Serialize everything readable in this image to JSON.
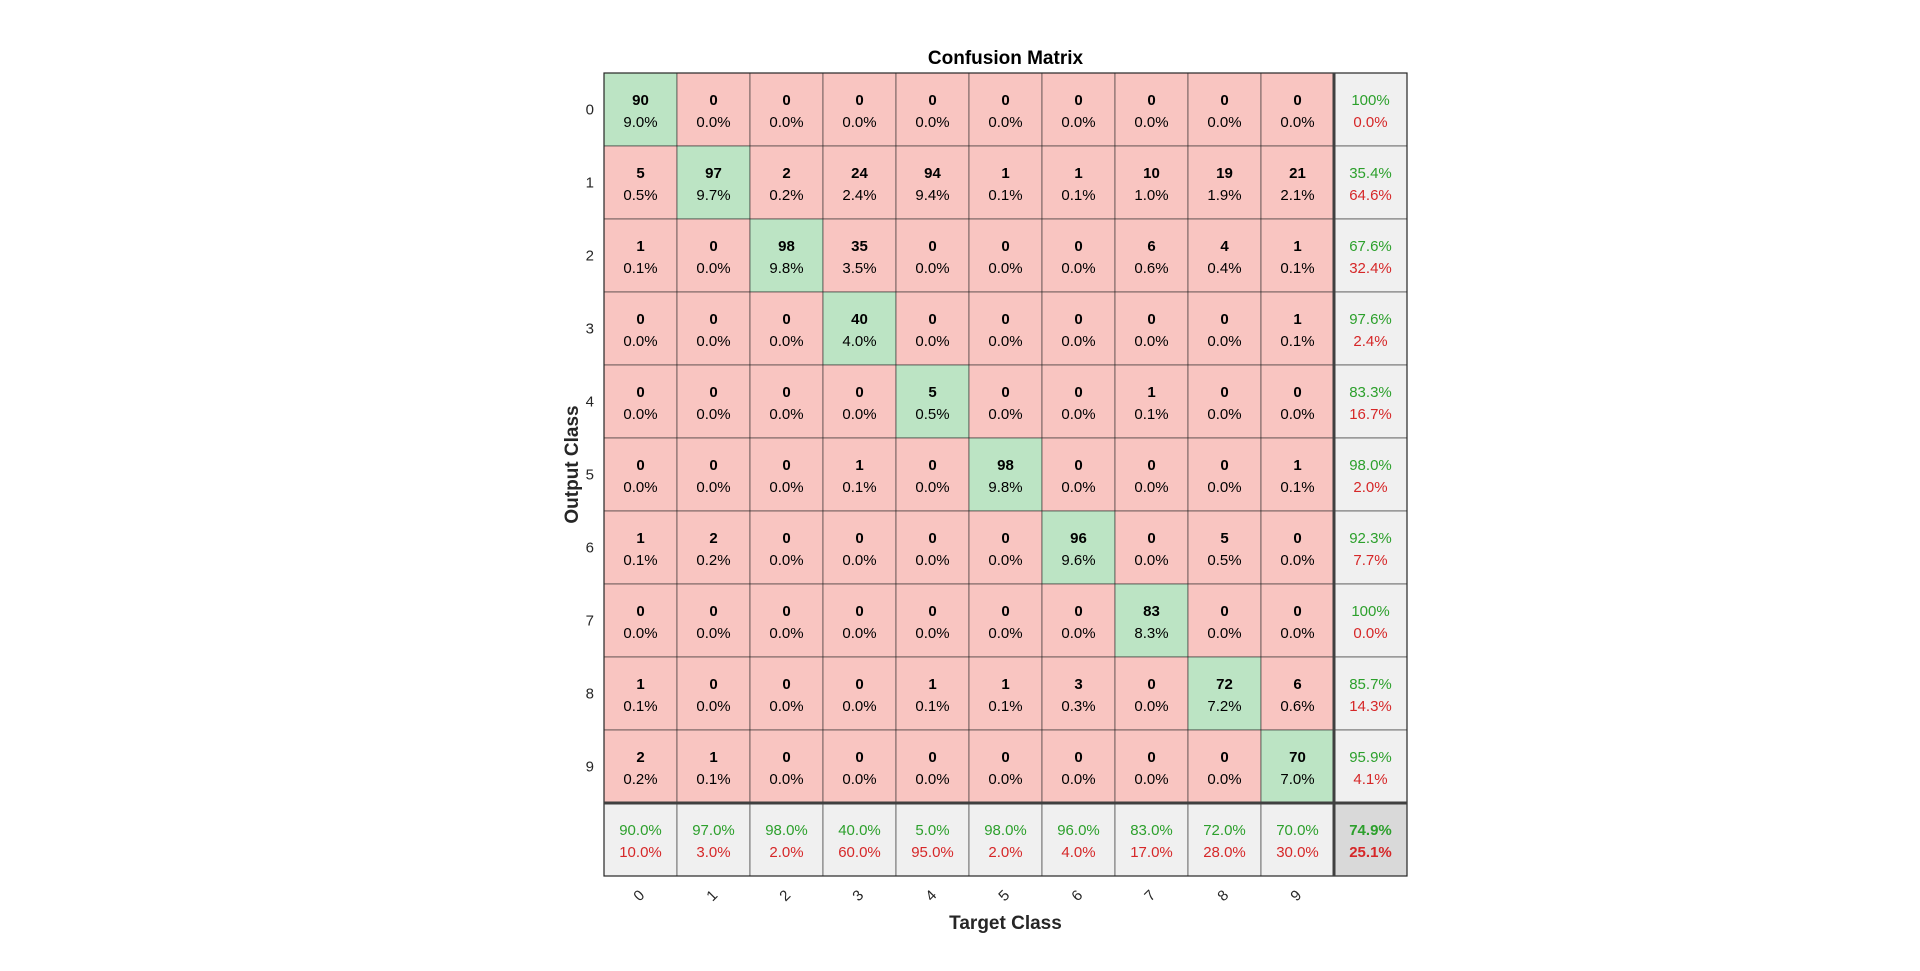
{
  "chart_data": {
    "type": "heatmap",
    "title": "Confusion Matrix",
    "xlabel": "Target Class",
    "ylabel": "Output Class",
    "classes": [
      "0",
      "1",
      "2",
      "3",
      "4",
      "5",
      "6",
      "7",
      "8",
      "9"
    ],
    "counts": [
      [
        90,
        0,
        0,
        0,
        0,
        0,
        0,
        0,
        0,
        0
      ],
      [
        5,
        97,
        2,
        24,
        94,
        1,
        1,
        10,
        19,
        21
      ],
      [
        1,
        0,
        98,
        35,
        0,
        0,
        0,
        6,
        4,
        1
      ],
      [
        0,
        0,
        0,
        40,
        0,
        0,
        0,
        0,
        0,
        1
      ],
      [
        0,
        0,
        0,
        0,
        5,
        0,
        0,
        1,
        0,
        0
      ],
      [
        0,
        0,
        0,
        1,
        0,
        98,
        0,
        0,
        0,
        1
      ],
      [
        1,
        2,
        0,
        0,
        0,
        0,
        96,
        0,
        5,
        0
      ],
      [
        0,
        0,
        0,
        0,
        0,
        0,
        0,
        83,
        0,
        0
      ],
      [
        1,
        0,
        0,
        0,
        1,
        1,
        3,
        0,
        72,
        6
      ],
      [
        2,
        1,
        0,
        0,
        0,
        0,
        0,
        0,
        0,
        70
      ]
    ],
    "percentages": [
      [
        "9.0%",
        "0.0%",
        "0.0%",
        "0.0%",
        "0.0%",
        "0.0%",
        "0.0%",
        "0.0%",
        "0.0%",
        "0.0%"
      ],
      [
        "0.5%",
        "9.7%",
        "0.2%",
        "2.4%",
        "9.4%",
        "0.1%",
        "0.1%",
        "1.0%",
        "1.9%",
        "2.1%"
      ],
      [
        "0.1%",
        "0.0%",
        "9.8%",
        "3.5%",
        "0.0%",
        "0.0%",
        "0.0%",
        "0.6%",
        "0.4%",
        "0.1%"
      ],
      [
        "0.0%",
        "0.0%",
        "0.0%",
        "4.0%",
        "0.0%",
        "0.0%",
        "0.0%",
        "0.0%",
        "0.0%",
        "0.1%"
      ],
      [
        "0.0%",
        "0.0%",
        "0.0%",
        "0.0%",
        "0.5%",
        "0.0%",
        "0.0%",
        "0.1%",
        "0.0%",
        "0.0%"
      ],
      [
        "0.0%",
        "0.0%",
        "0.0%",
        "0.1%",
        "0.0%",
        "9.8%",
        "0.0%",
        "0.0%",
        "0.0%",
        "0.1%"
      ],
      [
        "0.1%",
        "0.2%",
        "0.0%",
        "0.0%",
        "0.0%",
        "0.0%",
        "9.6%",
        "0.0%",
        "0.5%",
        "0.0%"
      ],
      [
        "0.0%",
        "0.0%",
        "0.0%",
        "0.0%",
        "0.0%",
        "0.0%",
        "0.0%",
        "8.3%",
        "0.0%",
        "0.0%"
      ],
      [
        "0.1%",
        "0.0%",
        "0.0%",
        "0.0%",
        "0.1%",
        "0.1%",
        "0.3%",
        "0.0%",
        "7.2%",
        "0.6%"
      ],
      [
        "0.2%",
        "0.1%",
        "0.0%",
        "0.0%",
        "0.0%",
        "0.0%",
        "0.0%",
        "0.0%",
        "0.0%",
        "7.0%"
      ]
    ],
    "row_summary": [
      [
        "100%",
        "0.0%"
      ],
      [
        "35.4%",
        "64.6%"
      ],
      [
        "67.6%",
        "32.4%"
      ],
      [
        "97.6%",
        "2.4%"
      ],
      [
        "83.3%",
        "16.7%"
      ],
      [
        "98.0%",
        "2.0%"
      ],
      [
        "92.3%",
        "7.7%"
      ],
      [
        "100%",
        "0.0%"
      ],
      [
        "85.7%",
        "14.3%"
      ],
      [
        "95.9%",
        "4.1%"
      ]
    ],
    "col_summary": [
      [
        "90.0%",
        "10.0%"
      ],
      [
        "97.0%",
        "3.0%"
      ],
      [
        "98.0%",
        "2.0%"
      ],
      [
        "40.0%",
        "60.0%"
      ],
      [
        "5.0%",
        "95.0%"
      ],
      [
        "98.0%",
        "2.0%"
      ],
      [
        "96.0%",
        "4.0%"
      ],
      [
        "83.0%",
        "17.0%"
      ],
      [
        "72.0%",
        "28.0%"
      ],
      [
        "70.0%",
        "30.0%"
      ]
    ],
    "overall": [
      "74.9%",
      "25.1%"
    ],
    "colors": {
      "correct": "#bce4c4",
      "incorrect": "#f9c5c1",
      "summary": "#f0f0f0",
      "overall": "#d9d9d9",
      "good_text": "#2ca02c",
      "bad_text": "#d62728",
      "grid": "#262626"
    }
  }
}
